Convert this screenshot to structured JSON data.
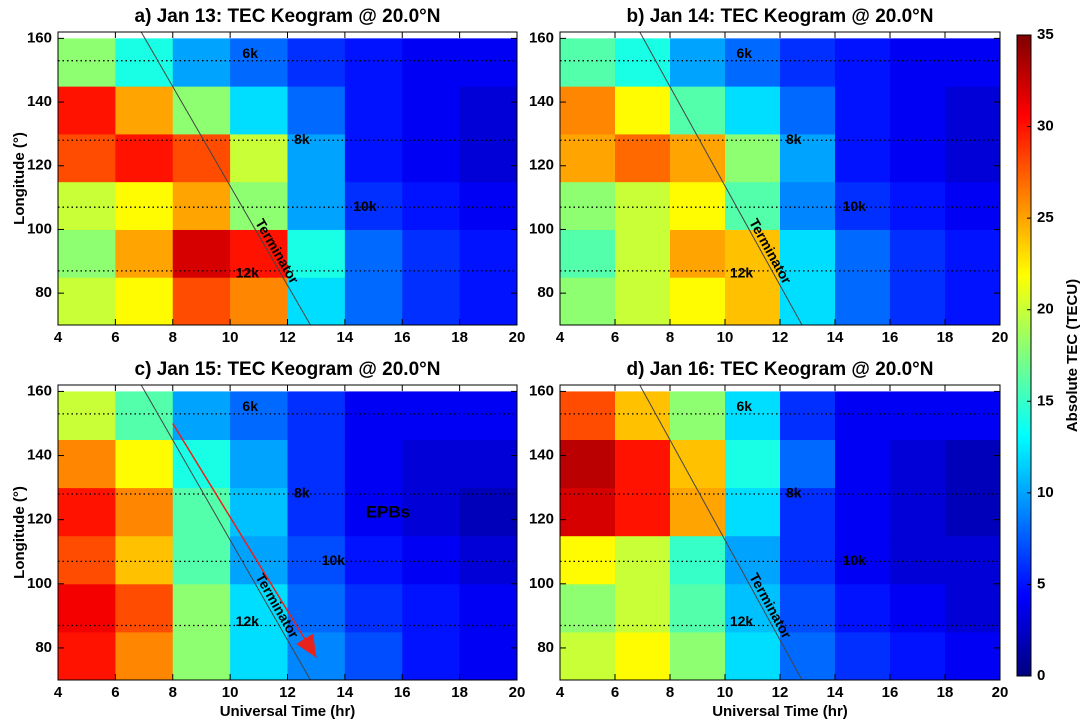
{
  "chart_data": [
    {
      "type": "heatmap",
      "title": "a) Jan 13: TEC Keogram @ 20.0°N",
      "ylabel": "Longitude (°)",
      "xlim": [
        4,
        20
      ],
      "xticks": [
        4,
        6,
        8,
        10,
        12,
        14,
        16,
        18,
        20
      ],
      "ylim": [
        70,
        162
      ],
      "yticks": [
        80,
        100,
        120,
        140,
        160
      ],
      "x_bins": [
        4,
        6,
        8,
        10,
        12,
        14,
        16,
        18,
        20
      ],
      "y_bins": [
        70,
        85,
        100,
        115,
        130,
        145,
        160
      ],
      "z": [
        [
          20,
          22,
          28,
          26,
          12,
          8,
          6,
          5
        ],
        [
          18,
          25,
          32,
          30,
          14,
          8,
          6,
          5
        ],
        [
          20,
          22,
          25,
          18,
          10,
          6,
          5,
          4
        ],
        [
          28,
          30,
          28,
          20,
          10,
          5,
          4,
          3
        ],
        [
          30,
          25,
          18,
          12,
          8,
          5,
          4,
          3
        ],
        [
          18,
          14,
          10,
          8,
          6,
          5,
          4,
          4
        ]
      ],
      "hlines": [
        153,
        128,
        107,
        87
      ],
      "annotations": [
        {
          "text": "6k",
          "x": 10.7,
          "y": 155
        },
        {
          "text": "8k",
          "x": 12.5,
          "y": 128
        },
        {
          "text": "10k",
          "x": 14.7,
          "y": 107
        },
        {
          "text": "12k",
          "x": 10.6,
          "y": 86
        }
      ],
      "lines": [
        {
          "label": "Terminator",
          "x": [
            6.9,
            12.8
          ],
          "y": [
            162,
            70
          ]
        }
      ]
    },
    {
      "type": "heatmap",
      "title": "b) Jan 14: TEC Keogram @ 20.0°N",
      "xlim": [
        4,
        20
      ],
      "xticks": [
        4,
        6,
        8,
        10,
        12,
        14,
        16,
        18,
        20
      ],
      "ylim": [
        70,
        162
      ],
      "yticks": [
        80,
        100,
        120,
        140,
        160
      ],
      "x_bins": [
        4,
        6,
        8,
        10,
        12,
        14,
        16,
        18,
        20
      ],
      "y_bins": [
        70,
        85,
        100,
        115,
        130,
        145,
        160
      ],
      "z": [
        [
          18,
          20,
          22,
          24,
          12,
          8,
          6,
          5
        ],
        [
          16,
          20,
          25,
          24,
          12,
          8,
          6,
          5
        ],
        [
          18,
          20,
          22,
          16,
          9,
          6,
          5,
          4
        ],
        [
          25,
          27,
          25,
          18,
          10,
          5,
          4,
          3
        ],
        [
          26,
          22,
          16,
          12,
          8,
          5,
          4,
          3
        ],
        [
          16,
          14,
          10,
          8,
          6,
          5,
          4,
          4
        ]
      ],
      "hlines": [
        153,
        128,
        107,
        87
      ],
      "annotations": [
        {
          "text": "6k",
          "x": 10.7,
          "y": 155
        },
        {
          "text": "8k",
          "x": 12.5,
          "y": 128
        },
        {
          "text": "10k",
          "x": 14.7,
          "y": 107
        },
        {
          "text": "12k",
          "x": 10.6,
          "y": 86
        }
      ],
      "lines": [
        {
          "label": "Terminator",
          "x": [
            6.9,
            12.8
          ],
          "y": [
            162,
            70
          ]
        }
      ]
    },
    {
      "type": "heatmap",
      "title": "c) Jan 15: TEC Keogram @ 20.0°N",
      "xlabel": "Universal Time (hr)",
      "ylabel": "Longitude (°)",
      "xlim": [
        4,
        20
      ],
      "xticks": [
        4,
        6,
        8,
        10,
        12,
        14,
        16,
        18,
        20
      ],
      "ylim": [
        70,
        162
      ],
      "yticks": [
        80,
        100,
        120,
        140,
        160
      ],
      "x_bins": [
        4,
        6,
        8,
        10,
        12,
        14,
        16,
        18,
        20
      ],
      "y_bins": [
        70,
        85,
        100,
        115,
        130,
        145,
        160
      ],
      "z": [
        [
          30,
          26,
          18,
          12,
          9,
          7,
          5,
          4
        ],
        [
          31,
          28,
          18,
          12,
          8,
          6,
          5,
          4
        ],
        [
          28,
          24,
          16,
          10,
          7,
          5,
          4,
          3
        ],
        [
          30,
          26,
          16,
          11,
          6,
          4,
          3,
          2
        ],
        [
          26,
          22,
          14,
          10,
          6,
          4,
          3,
          3
        ],
        [
          20,
          16,
          10,
          8,
          6,
          4,
          4,
          4
        ]
      ],
      "hlines": [
        153,
        128,
        107,
        87
      ],
      "annotations": [
        {
          "text": "6k",
          "x": 10.7,
          "y": 155
        },
        {
          "text": "8k",
          "x": 12.5,
          "y": 128
        },
        {
          "text": "EPBs",
          "x": 15.5,
          "y": 122
        },
        {
          "text": "10k",
          "x": 13.6,
          "y": 107
        },
        {
          "text": "12k",
          "x": 10.6,
          "y": 88
        }
      ],
      "lines": [
        {
          "label": "Terminator",
          "x": [
            6.9,
            12.8
          ],
          "y": [
            162,
            70
          ]
        }
      ],
      "arrows": [
        {
          "color": "#e8221c",
          "x": [
            8,
            13
          ],
          "y": [
            150,
            77
          ]
        }
      ]
    },
    {
      "type": "heatmap",
      "title": "d) Jan 16: TEC Keogram @ 20.0°N",
      "xlabel": "Universal Time (hr)",
      "xlim": [
        4,
        20
      ],
      "xticks": [
        4,
        6,
        8,
        10,
        12,
        14,
        16,
        18,
        20
      ],
      "ylim": [
        70,
        162
      ],
      "yticks": [
        80,
        100,
        120,
        140,
        160
      ],
      "x_bins": [
        4,
        6,
        8,
        10,
        12,
        14,
        16,
        18,
        20
      ],
      "y_bins": [
        70,
        85,
        100,
        115,
        130,
        145,
        160
      ],
      "z": [
        [
          20,
          22,
          18,
          12,
          8,
          6,
          5,
          4
        ],
        [
          18,
          20,
          16,
          11,
          7,
          5,
          4,
          3
        ],
        [
          22,
          20,
          15,
          10,
          6,
          4,
          3,
          3
        ],
        [
          32,
          30,
          25,
          12,
          6,
          4,
          3,
          2
        ],
        [
          33,
          30,
          24,
          14,
          8,
          4,
          3,
          2
        ],
        [
          28,
          24,
          18,
          12,
          6,
          4,
          4,
          4
        ]
      ],
      "hlines": [
        153,
        128,
        107,
        87
      ],
      "annotations": [
        {
          "text": "6k",
          "x": 10.7,
          "y": 155
        },
        {
          "text": "8k",
          "x": 12.5,
          "y": 128
        },
        {
          "text": "10k",
          "x": 14.7,
          "y": 107
        },
        {
          "text": "12k",
          "x": 10.6,
          "y": 88
        }
      ],
      "lines": [
        {
          "label": "Terminator",
          "x": [
            6.9,
            12.8
          ],
          "y": [
            162,
            70
          ]
        }
      ]
    },
    {
      "type": "colorbar",
      "label": "Absolute TEC (TECU)",
      "lim": [
        0,
        35
      ],
      "ticks": [
        0,
        5,
        10,
        15,
        20,
        25,
        30,
        35
      ],
      "colormap": [
        "#00007f",
        "#0000ff",
        "#007fff",
        "#00ffff",
        "#7fff7f",
        "#ffff00",
        "#ff7f00",
        "#ff0000",
        "#7f0000"
      ]
    }
  ]
}
